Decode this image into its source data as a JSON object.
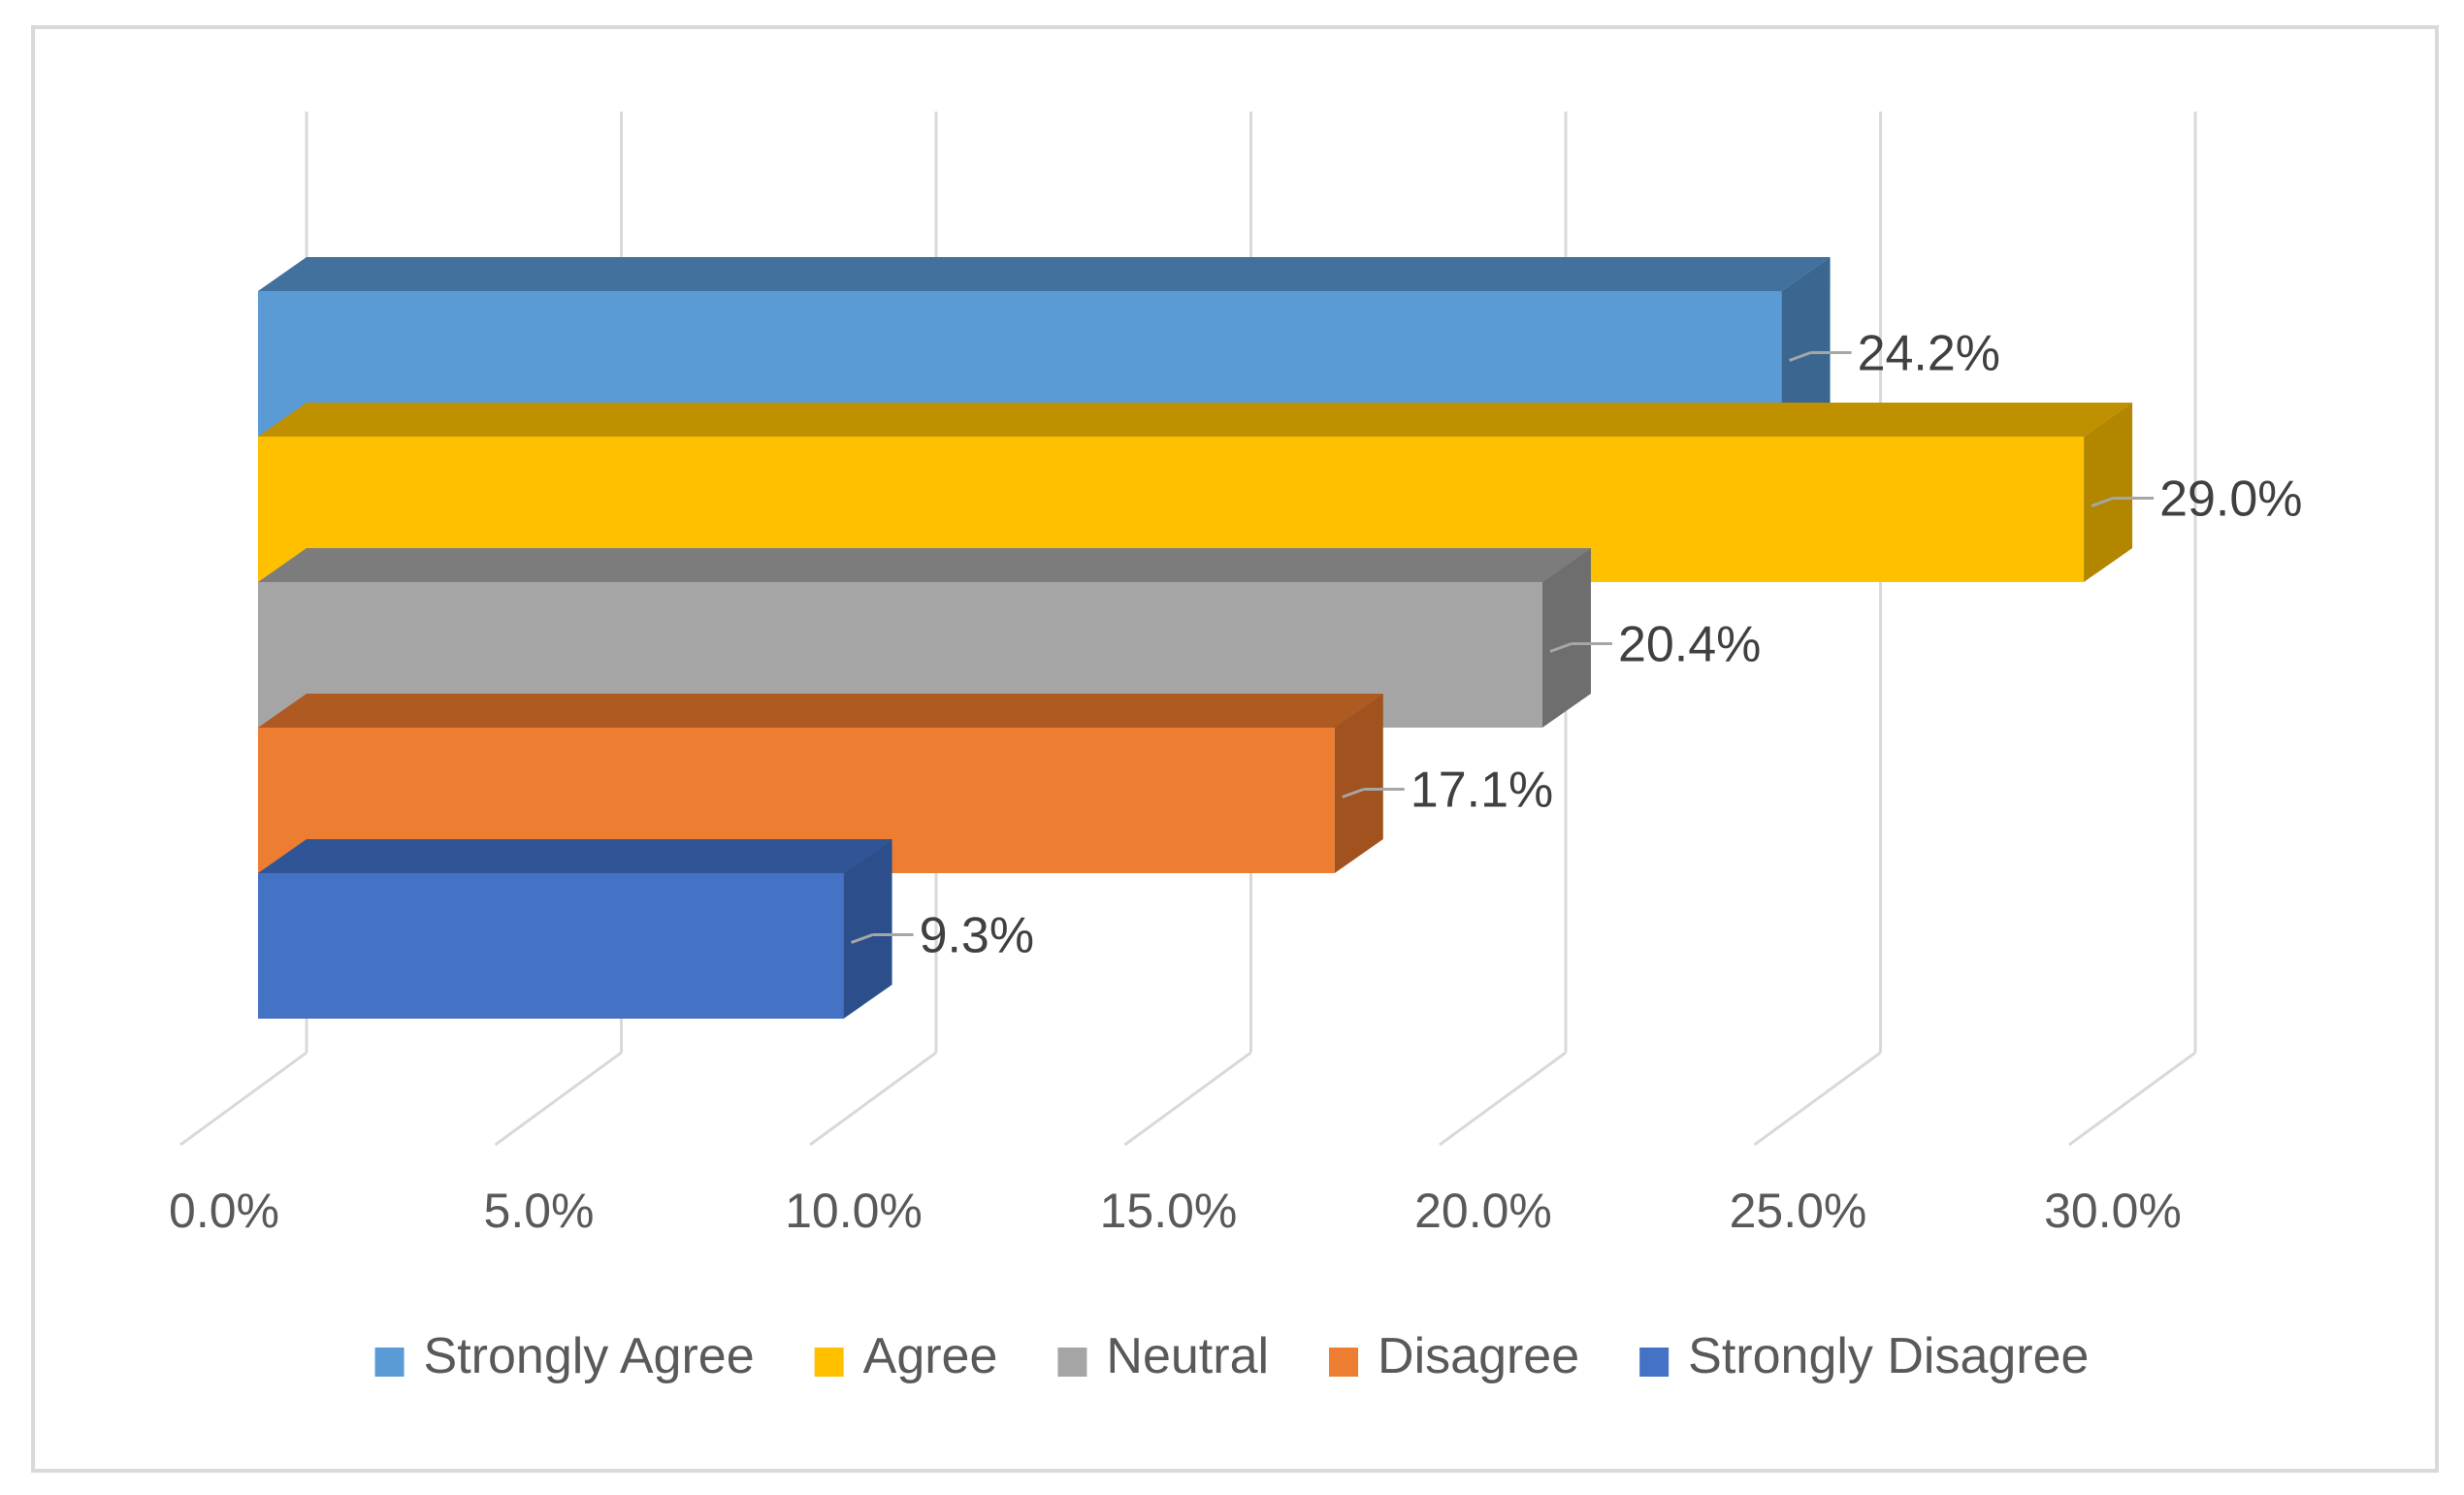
{
  "chart_data": {
    "type": "bar",
    "orientation": "horizontal",
    "style": "3d-clustered",
    "title": "",
    "xlabel": "",
    "ylabel": "",
    "xlim": [
      0,
      30
    ],
    "x_ticks": [
      0,
      5,
      10,
      15,
      20,
      25,
      30
    ],
    "x_tick_labels": [
      "0.0%",
      "5.0%",
      "10.0%",
      "15.0%",
      "20.0%",
      "25.0%",
      "30.0%"
    ],
    "grid": true,
    "legend_position": "bottom",
    "series": [
      {
        "name": "Strongly Agree",
        "value": 24.2,
        "label": "24.2%",
        "color": "#5b9bd5",
        "top_color": "#41719c",
        "side_color": "#3b6690"
      },
      {
        "name": "Agree",
        "value": 29.0,
        "label": "29.0%",
        "color": "#ffc000",
        "top_color": "#bf9000",
        "side_color": "#b38600"
      },
      {
        "name": "Neutral",
        "value": 20.4,
        "label": "20.4%",
        "color": "#a5a5a5",
        "top_color": "#7c7c7c",
        "side_color": "#6e6e6e"
      },
      {
        "name": "Disagree",
        "value": 17.1,
        "label": "17.1%",
        "color": "#ed7d31",
        "top_color": "#ae5a21",
        "side_color": "#a1521e"
      },
      {
        "name": "Strongly Disagree",
        "value": 9.3,
        "label": "9.3%",
        "color": "#4472c4",
        "top_color": "#2f5597",
        "side_color": "#2c4f8c"
      }
    ]
  }
}
